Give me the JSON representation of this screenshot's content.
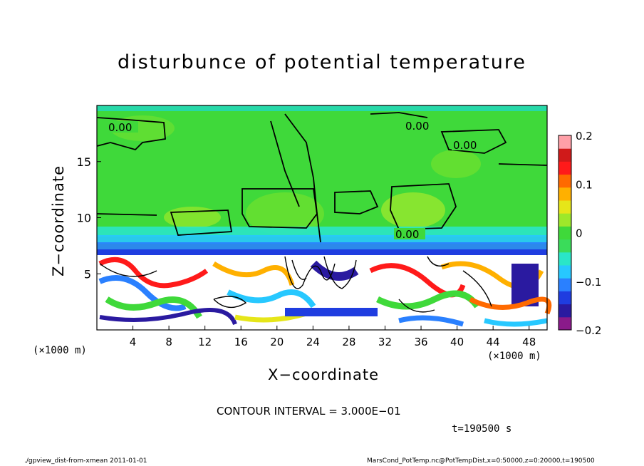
{
  "chart_data": {
    "type": "heatmap",
    "title": "disturbunce of potential temperature",
    "xlabel": "X−coordinate",
    "ylabel": "Z−coordinate",
    "x_unit_left": "(×1000 m)",
    "x_unit_right": "(×1000 m)",
    "xlim": [
      0,
      50
    ],
    "ylim": [
      0,
      20
    ],
    "x_ticks": [
      4,
      8,
      12,
      16,
      20,
      24,
      28,
      32,
      36,
      40,
      44,
      48
    ],
    "y_ticks": [
      5,
      10,
      15
    ],
    "colorbar": {
      "range": [
        -0.2,
        0.2
      ],
      "tick_values": [
        0.2,
        0.1,
        0,
        -0.1,
        -0.2
      ],
      "tick_labels": [
        "0.2",
        "0.1",
        "0",
        "−0.1",
        "−0.2"
      ],
      "colors": [
        "#8a1a8a",
        "#2a1aa0",
        "#1f3de0",
        "#2a80ff",
        "#27c8ff",
        "#2ae6c8",
        "#3adc5a",
        "#3fd93a",
        "#9ee82a",
        "#e6e619",
        "#ffb000",
        "#ff6a00",
        "#ff1a1a",
        "#d01a1a",
        "#ffa0a8"
      ]
    },
    "contour_labels": [
      "0.00",
      "0.00",
      "0.00",
      "0.00"
    ],
    "contour_interval": "CONTOUR INTERVAL = 3.000E−01",
    "time": "t=190500 s"
  },
  "footer": {
    "left": "./gpview_dist-from-xmean   2011-01-01",
    "right": "MarsCond_PotTemp.nc@PotTempDist,x=0:50000,z=0:20000,t=190500"
  }
}
